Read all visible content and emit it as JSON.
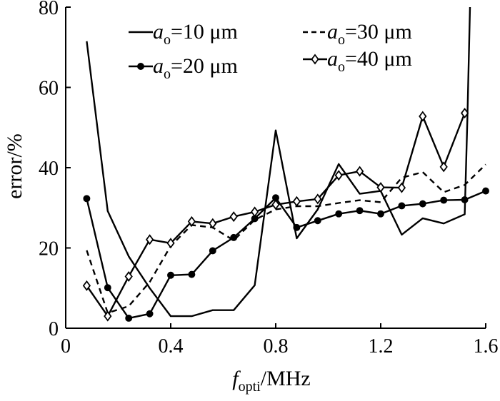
{
  "chart_data": {
    "type": "line",
    "title": "",
    "xlabel": {
      "main": "f",
      "sub": "opti",
      "unit": "/MHz"
    },
    "ylabel": "error/%",
    "xlim": [
      0,
      1.6
    ],
    "ylim": [
      0,
      80
    ],
    "xticks": [
      "0",
      "0.4",
      "0.8",
      "1.2",
      "1.6"
    ],
    "yticks": [
      "0",
      "20",
      "40",
      "60",
      "80"
    ],
    "grid": false,
    "legend_position": "top",
    "x": [
      0.08,
      0.16,
      0.24,
      0.32,
      0.4,
      0.48,
      0.56,
      0.64,
      0.72,
      0.8,
      0.88,
      0.96,
      1.04,
      1.12,
      1.2,
      1.28,
      1.36,
      1.44,
      1.52,
      1.6
    ],
    "series": [
      {
        "name": {
          "main": "a",
          "sub": "o",
          "rest": "=10 μm"
        },
        "style": "solid",
        "marker": "none",
        "x": [
          0.08,
          0.16,
          0.24,
          0.32,
          0.4,
          0.48,
          0.56,
          0.64,
          0.72,
          0.8,
          0.88,
          0.96,
          1.04,
          1.12,
          1.2,
          1.28,
          1.36,
          1.44,
          1.52,
          1.53,
          1.54
        ],
        "values": [
          71.5,
          29.2,
          17.9,
          10.0,
          3.0,
          3.0,
          4.5,
          4.5,
          10.7,
          49.3,
          22.4,
          29.6,
          40.9,
          33.5,
          34.2,
          23.3,
          27.4,
          26.1,
          28.4,
          52.0,
          80.0
        ]
      },
      {
        "name": {
          "main": "a",
          "sub": "o",
          "rest": "=20 μm"
        },
        "style": "solid",
        "marker": "circle",
        "x": [
          0.08,
          0.16,
          0.24,
          0.32,
          0.4,
          0.48,
          0.56,
          0.64,
          0.72,
          0.8,
          0.88,
          0.96,
          1.04,
          1.12,
          1.2,
          1.28,
          1.36,
          1.44,
          1.52,
          1.6
        ],
        "values": [
          32.3,
          10.1,
          2.5,
          3.6,
          13.2,
          13.4,
          19.3,
          22.6,
          27.3,
          32.5,
          25.1,
          26.8,
          28.5,
          29.3,
          28.5,
          30.5,
          31.0,
          31.9,
          32.0,
          34.2
        ]
      },
      {
        "name": {
          "main": "a",
          "sub": "o",
          "rest": "=30 μm"
        },
        "style": "dashed",
        "marker": "none",
        "x": [
          0.08,
          0.16,
          0.24,
          0.32,
          0.4,
          0.48,
          0.56,
          0.64,
          0.72,
          0.8,
          0.88,
          0.96,
          1.04,
          1.12,
          1.2,
          1.28,
          1.36,
          1.44,
          1.52,
          1.6
        ],
        "values": [
          19.4,
          3.8,
          5.5,
          11.5,
          20.5,
          25.7,
          25.1,
          21.9,
          27.0,
          29.6,
          30.4,
          30.4,
          31.2,
          31.9,
          31.4,
          37.5,
          38.9,
          33.9,
          35.7,
          40.8
        ]
      },
      {
        "name": {
          "main": "a",
          "sub": "o",
          "rest": "=40 μm"
        },
        "style": "solid",
        "marker": "diamond",
        "x": [
          0.08,
          0.16,
          0.24,
          0.32,
          0.4,
          0.48,
          0.56,
          0.64,
          0.72,
          0.8,
          0.88,
          0.96,
          1.04,
          1.12,
          1.2,
          1.28,
          1.36,
          1.44,
          1.52
        ],
        "values": [
          10.6,
          3.0,
          12.9,
          22.1,
          21.2,
          26.6,
          26.1,
          27.8,
          29.0,
          30.8,
          31.6,
          32.2,
          38.1,
          39.1,
          35.1,
          35.0,
          52.8,
          40.2,
          53.6
        ]
      }
    ]
  }
}
